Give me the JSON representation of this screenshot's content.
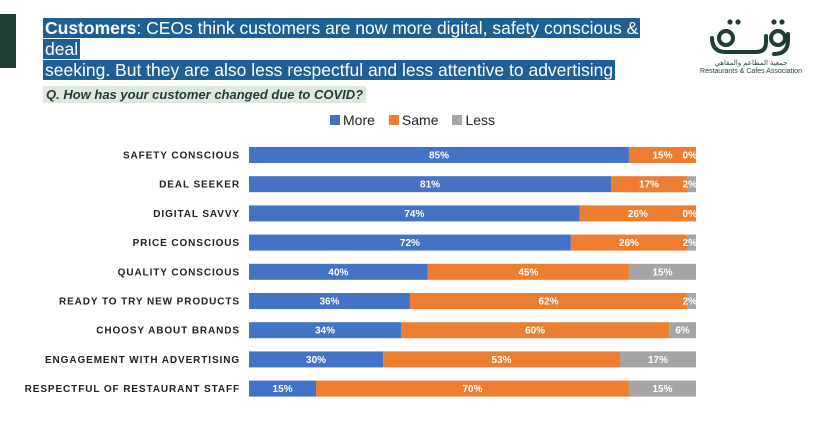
{
  "header": {
    "headline_bold": "Customers",
    "headline_line1_rest": ": CEOs think customers are now more digital, safety conscious & deal",
    "headline_line2": "seeking. But they are also less respectful and less attentive to advertising"
  },
  "logo": {
    "subtitle_ar": "جمعية المطاعم والمقاهي",
    "subtitle_en": "Restaurants & Cafes Association"
  },
  "question": "Q. How has your customer changed due to COVID?",
  "colors": {
    "more": "#4472c4",
    "same": "#ed7d31",
    "less": "#a5a5a5",
    "brand": "#1f3d33",
    "headline_bg": "#1f5f95"
  },
  "chart_data": {
    "type": "bar",
    "orientation": "horizontal",
    "stacked": true,
    "normalized": true,
    "legend_position": "top",
    "categories": [
      "SAFETY CONSCIOUS",
      "DEAL SEEKER",
      "DIGITAL SAVVY",
      "PRICE CONSCIOUS",
      "QUALITY CONSCIOUS",
      "READY TO TRY NEW PRODUCTS",
      "CHOOSY ABOUT BRANDS",
      "ENGAGEMENT WITH ADVERTISING",
      "RESPECTFUL OF RESTAURANT STAFF"
    ],
    "series": [
      {
        "name": "More",
        "values": [
          85,
          81,
          74,
          72,
          40,
          36,
          34,
          30,
          15
        ]
      },
      {
        "name": "Same",
        "values": [
          15,
          17,
          26,
          26,
          45,
          62,
          60,
          53,
          70
        ]
      },
      {
        "name": "Less",
        "values": [
          0,
          2,
          0,
          2,
          15,
          2,
          6,
          17,
          15
        ]
      }
    ],
    "value_suffix": "%"
  }
}
